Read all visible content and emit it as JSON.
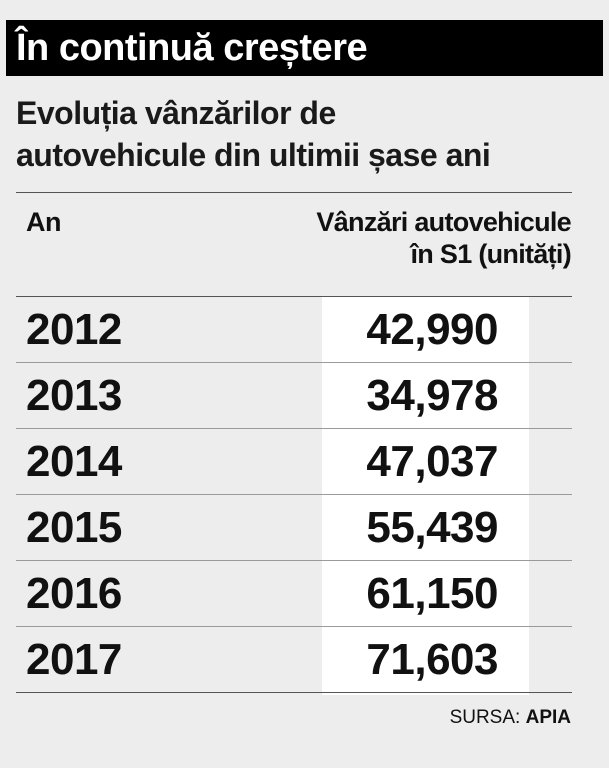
{
  "chart_data": {
    "type": "table",
    "title": "În continuă creștere",
    "subtitle_lines": [
      "Evoluția vânzărilor de",
      "autovehicule din ultimii șase ani"
    ],
    "columns": {
      "year": "An",
      "sales_line1": "Vânzări autovehicule",
      "sales_line2": "în S1 (unități)"
    },
    "rows": [
      {
        "year": "2012",
        "value": "42,990"
      },
      {
        "year": "2013",
        "value": "34,978"
      },
      {
        "year": "2014",
        "value": "47,037"
      },
      {
        "year": "2015",
        "value": "55,439"
      },
      {
        "year": "2016",
        "value": "61,150"
      },
      {
        "year": "2017",
        "value": "71,603"
      }
    ],
    "source": {
      "label": "SURSA:",
      "name": "APIA"
    }
  }
}
